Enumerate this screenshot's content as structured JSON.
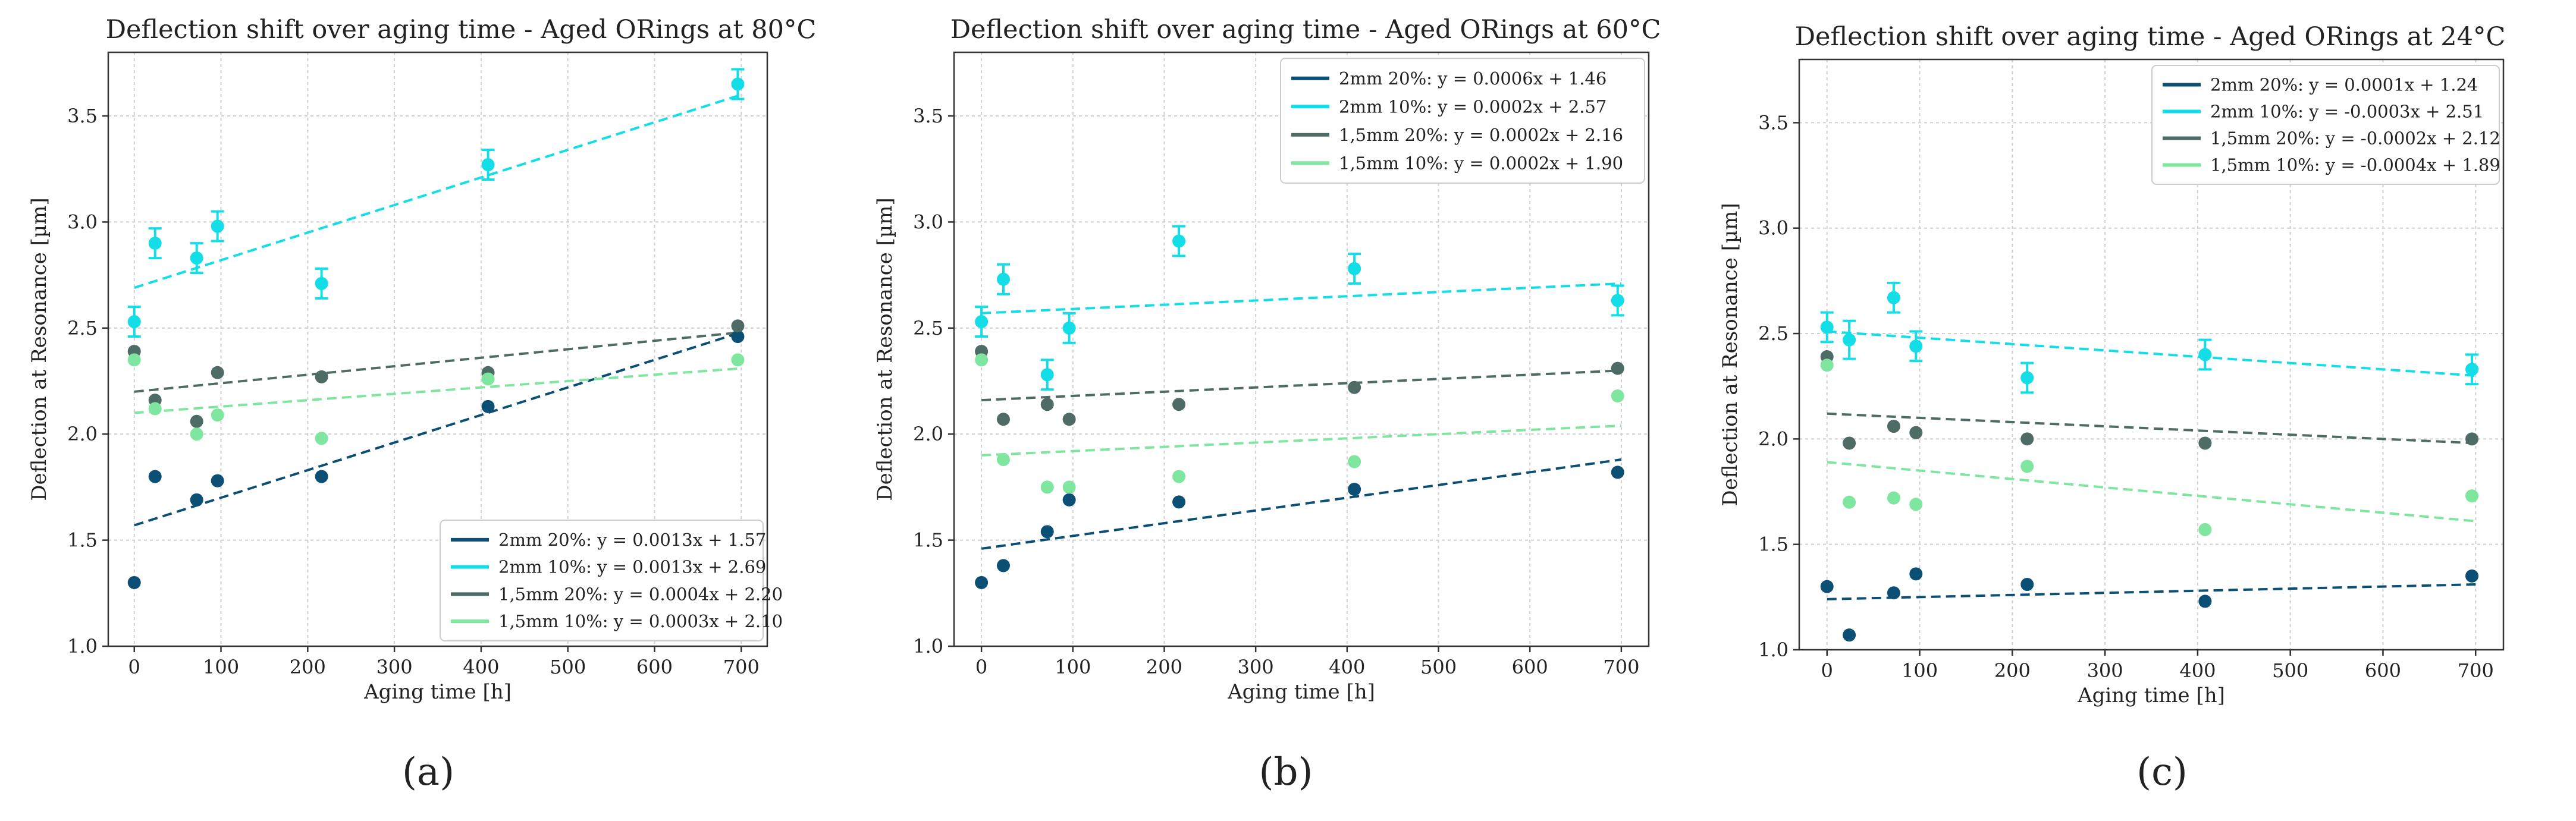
{
  "colors": {
    "2mm 20%": "#0b4f74",
    "2mm 10%": "#13dde6",
    "1,5mm 20%": "#4f6b66",
    "1,5mm 10%": "#7fe6a0"
  },
  "chart_data": [
    {
      "type": "scatter",
      "caption": "(a)",
      "title": "Deflection shift over aging time - Aged ORings at 80°C",
      "xlabel": "Aging time [h]",
      "ylabel": "Deflection at Resonance [µm]",
      "xlim": [
        -30,
        730
      ],
      "ylim": [
        1.0,
        3.8
      ],
      "xticks": [
        0,
        100,
        200,
        300,
        400,
        500,
        600,
        700
      ],
      "xtick_labels": [
        "0",
        "100",
        "200",
        "300",
        "400",
        "500",
        "600",
        "700"
      ],
      "yticks": [
        1.0,
        1.5,
        2.0,
        2.5,
        3.0,
        3.5
      ],
      "ytick_labels": [
        "1.0",
        "1.5",
        "2.0",
        "2.5",
        "3.0",
        "3.5"
      ],
      "grid": true,
      "legend_position": "bottom-right",
      "x": [
        0,
        24,
        72,
        96,
        216,
        408,
        696
      ],
      "series": [
        {
          "name": "2mm 20%",
          "legend": "2mm 20%: y = 0.0013x + 1.57",
          "values": [
            1.3,
            1.8,
            1.69,
            1.78,
            1.8,
            2.13,
            2.46
          ],
          "errors": [
            0.01,
            0.01,
            0.01,
            0.01,
            0.01,
            0.01,
            0.01
          ],
          "fit": {
            "slope": 0.0013,
            "intercept": 1.57
          }
        },
        {
          "name": "2mm 10%",
          "legend": "2mm 10%: y = 0.0013x + 2.69",
          "values": [
            2.53,
            2.9,
            2.83,
            2.98,
            2.71,
            3.27,
            3.65
          ],
          "errors": [
            0.07,
            0.07,
            0.07,
            0.07,
            0.07,
            0.07,
            0.07
          ],
          "fit": {
            "slope": 0.0013,
            "intercept": 2.69
          }
        },
        {
          "name": "1,5mm 20%",
          "legend": "1,5mm 20%: y = 0.0004x + 2.20",
          "values": [
            2.39,
            2.16,
            2.06,
            2.29,
            2.27,
            2.29,
            2.51
          ],
          "errors": [
            0,
            0,
            0,
            0,
            0,
            0,
            0
          ],
          "fit": {
            "slope": 0.0004,
            "intercept": 2.2
          }
        },
        {
          "name": "1,5mm 10%",
          "legend": "1,5mm 10%: y = 0.0003x + 2.10",
          "values": [
            2.35,
            2.12,
            2.0,
            2.09,
            1.98,
            2.26,
            2.35
          ],
          "errors": [
            0,
            0,
            0,
            0,
            0,
            0,
            0
          ],
          "fit": {
            "slope": 0.0003,
            "intercept": 2.1
          }
        }
      ]
    },
    {
      "type": "scatter",
      "caption": "(b)",
      "title": "Deflection shift over aging time - Aged ORings at 60°C",
      "xlabel": "Aging time [h]",
      "ylabel": "Deflection at Resonance [µm]",
      "xlim": [
        -30,
        730
      ],
      "ylim": [
        1.0,
        3.8
      ],
      "xticks": [
        0,
        100,
        200,
        300,
        400,
        500,
        600,
        700
      ],
      "xtick_labels": [
        "0",
        "100",
        "200",
        "300",
        "400",
        "500",
        "600",
        "700"
      ],
      "yticks": [
        1.0,
        1.5,
        2.0,
        2.5,
        3.0,
        3.5
      ],
      "ytick_labels": [
        "1.0",
        "1.5",
        "2.0",
        "2.5",
        "3.0",
        "3.5"
      ],
      "grid": true,
      "legend_position": "top-right",
      "x": [
        0,
        24,
        72,
        96,
        216,
        408,
        696
      ],
      "series": [
        {
          "name": "2mm 20%",
          "legend": "2mm 20%: y = 0.0006x + 1.46",
          "values": [
            1.3,
            1.38,
            1.54,
            1.69,
            1.68,
            1.74,
            1.82
          ],
          "errors": [
            0.01,
            0.01,
            0.01,
            0.01,
            0.01,
            0.01,
            0.01
          ],
          "fit": {
            "slope": 0.0006,
            "intercept": 1.46
          }
        },
        {
          "name": "2mm 10%",
          "legend": "2mm 10%: y = 0.0002x + 2.57",
          "values": [
            2.53,
            2.73,
            2.28,
            2.5,
            2.91,
            2.78,
            2.63
          ],
          "errors": [
            0.07,
            0.07,
            0.07,
            0.07,
            0.07,
            0.07,
            0.07
          ],
          "fit": {
            "slope": 0.0002,
            "intercept": 2.57
          }
        },
        {
          "name": "1,5mm 20%",
          "legend": "1,5mm 20%: y = 0.0002x + 2.16",
          "values": [
            2.39,
            2.07,
            2.14,
            2.07,
            2.14,
            2.22,
            2.31
          ],
          "errors": [
            0,
            0,
            0,
            0,
            0,
            0,
            0
          ],
          "fit": {
            "slope": 0.0002,
            "intercept": 2.16
          }
        },
        {
          "name": "1,5mm 10%",
          "legend": "1,5mm 10%: y = 0.0002x + 1.90",
          "values": [
            2.35,
            1.88,
            1.75,
            1.75,
            1.8,
            1.87,
            2.18
          ],
          "errors": [
            0,
            0,
            0,
            0,
            0,
            0,
            0
          ],
          "fit": {
            "slope": 0.0002,
            "intercept": 1.9
          }
        }
      ]
    },
    {
      "type": "scatter",
      "caption": "(c)",
      "title": "Deflection shift over aging time - Aged ORings at 24°C",
      "xlabel": "Aging time [h]",
      "ylabel": "Deflection at Resonance [µm]",
      "xlim": [
        -30,
        730
      ],
      "ylim": [
        1.0,
        3.8
      ],
      "xticks": [
        0,
        100,
        200,
        300,
        400,
        500,
        600,
        700
      ],
      "xtick_labels": [
        "0",
        "100",
        "200",
        "300",
        "400",
        "500",
        "600",
        "700"
      ],
      "yticks": [
        1.0,
        1.5,
        2.0,
        2.5,
        3.0,
        3.5
      ],
      "ytick_labels": [
        "1.0",
        "1.5",
        "2.0",
        "2.5",
        "3.0",
        "3.5"
      ],
      "grid": true,
      "legend_position": "top-right",
      "x": [
        0,
        24,
        72,
        96,
        216,
        408,
        696
      ],
      "series": [
        {
          "name": "2mm 20%",
          "legend": "2mm 20%: y = 0.0001x + 1.24",
          "values": [
            1.3,
            1.07,
            1.27,
            1.36,
            1.31,
            1.23,
            1.35
          ],
          "errors": [
            0.01,
            0.01,
            0.01,
            0.01,
            0.01,
            0.01,
            0.01
          ],
          "fit": {
            "slope": 0.0001,
            "intercept": 1.24
          }
        },
        {
          "name": "2mm 10%",
          "legend": "2mm 10%: y = -0.0003x + 2.51",
          "values": [
            2.53,
            2.47,
            2.67,
            2.44,
            2.29,
            2.4,
            2.33
          ],
          "errors": [
            0.07,
            0.09,
            0.07,
            0.07,
            0.07,
            0.07,
            0.07
          ],
          "fit": {
            "slope": -0.0003,
            "intercept": 2.51
          }
        },
        {
          "name": "1,5mm 20%",
          "legend": "1,5mm 20%: y = -0.0002x + 2.12",
          "values": [
            2.39,
            1.98,
            2.06,
            2.03,
            2.0,
            1.98,
            2.0
          ],
          "errors": [
            0,
            0,
            0,
            0,
            0,
            0,
            0
          ],
          "fit": {
            "slope": -0.0002,
            "intercept": 2.12
          }
        },
        {
          "name": "1,5mm 10%",
          "legend": "1,5mm 10%: y = -0.0004x + 1.89",
          "values": [
            2.35,
            1.7,
            1.72,
            1.69,
            1.87,
            1.57,
            1.73
          ],
          "errors": [
            0,
            0,
            0,
            0,
            0,
            0,
            0
          ],
          "fit": {
            "slope": -0.0004,
            "intercept": 1.89
          }
        }
      ]
    }
  ]
}
